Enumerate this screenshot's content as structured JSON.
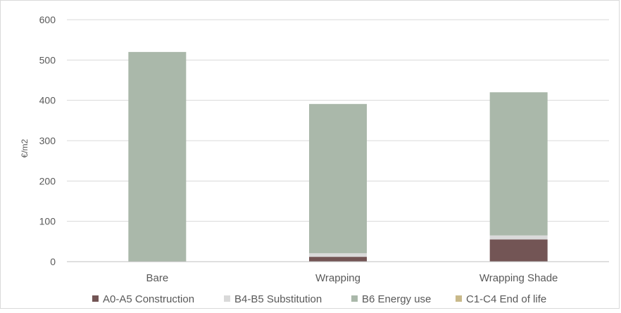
{
  "chart_data": {
    "type": "bar",
    "stacked": true,
    "ylabel": "€/m2",
    "ylim": [
      0,
      600
    ],
    "yticks": [
      "0",
      "100",
      "200",
      "300",
      "400",
      "500",
      "600"
    ],
    "grid": true,
    "legend_position": "bottom",
    "categories": [
      "Bare",
      "Wrapping",
      "Wrapping Shade"
    ],
    "series": [
      {
        "name": "A0-A5 Construction",
        "color": "#735555",
        "values": [
          0,
          12,
          55
        ]
      },
      {
        "name": "B4-B5 Substitution",
        "color": "#d9d9d9",
        "values": [
          0,
          9,
          10
        ]
      },
      {
        "name": "B6 Energy use",
        "color": "#aab8aa",
        "values": [
          520,
          370,
          355
        ]
      },
      {
        "name": "C1-C4 End of life",
        "color": "#c9b98a",
        "values": [
          0,
          0,
          0
        ]
      }
    ]
  }
}
